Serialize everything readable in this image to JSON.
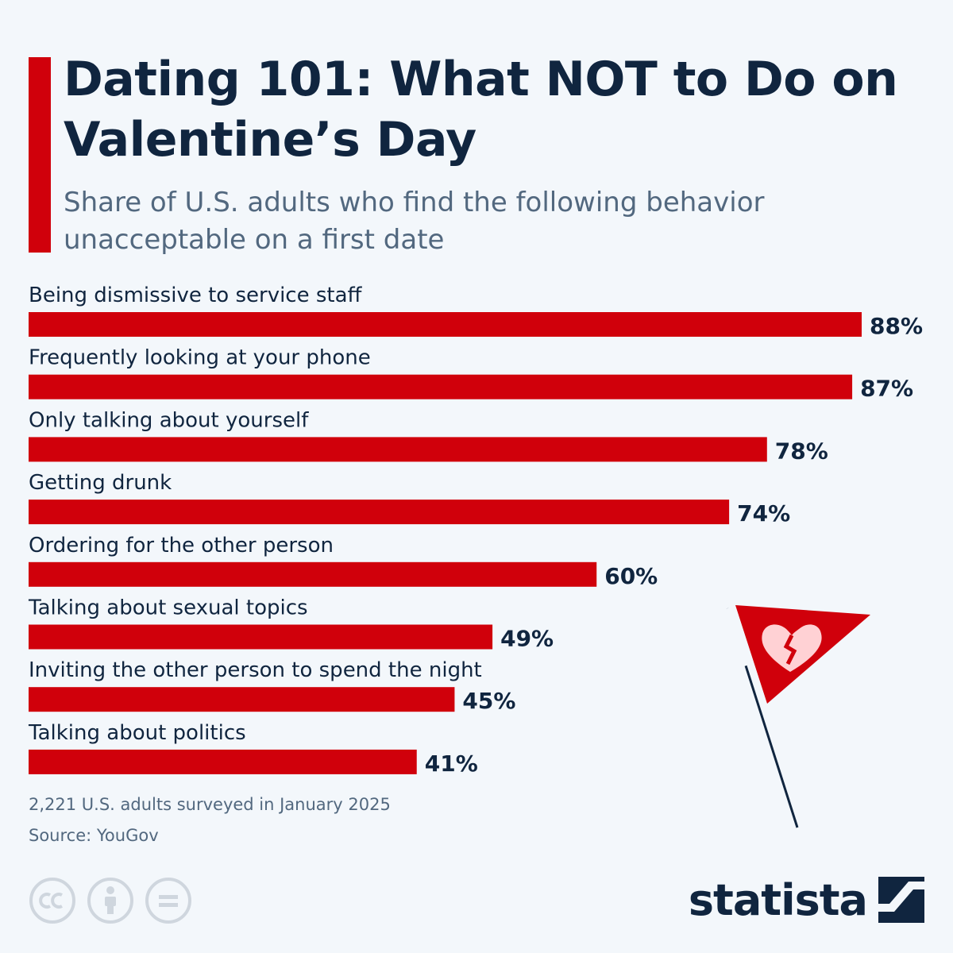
{
  "header": {
    "title": "Dating 101: What NOT to Do on Valentine’s Day",
    "subtitle": "Share of U.S. adults who find the following behavior unacceptable on a first date"
  },
  "colors": {
    "accent": "#d0000b",
    "text_dark": "#10253f",
    "text_muted": "#52687f",
    "background": "#f3f7fb"
  },
  "chart_data": {
    "type": "bar",
    "orientation": "horizontal",
    "categories": [
      "Being dismissive to service staff",
      "Frequently looking at your phone",
      "Only talking about yourself",
      "Getting drunk",
      "Ordering for the other person",
      "Talking about sexual topics",
      "Inviting the other person to spend the night",
      "Talking about politics"
    ],
    "values": [
      88,
      87,
      78,
      74,
      60,
      49,
      45,
      41
    ],
    "value_labels": [
      "88%",
      "87%",
      "78%",
      "74%",
      "60%",
      "49%",
      "45%",
      "41%"
    ],
    "xlim": [
      0,
      100
    ],
    "unit": "%",
    "grid": false
  },
  "footer": {
    "note": "2,221 U.S. adults surveyed in January 2025",
    "source": "Source: YouGov",
    "brand": "statista"
  },
  "icons": {
    "license": [
      "cc-icon",
      "attribution-icon",
      "no-derivatives-icon"
    ],
    "brand_logo": "statista-logo-icon",
    "illustration": "red-flag-broken-heart-icon"
  }
}
